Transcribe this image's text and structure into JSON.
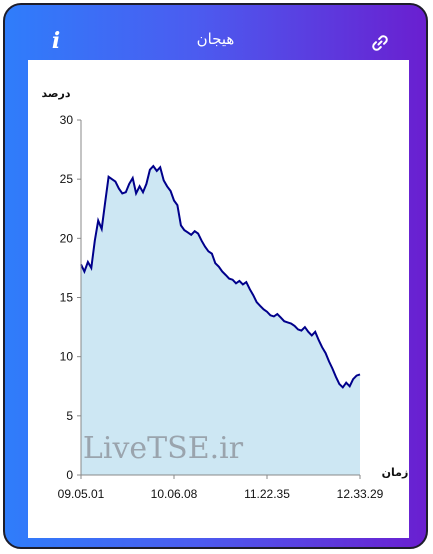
{
  "header": {
    "info_icon": "info-icon",
    "info_label": "i",
    "title": "هیجان",
    "link_icon": "link-icon"
  },
  "watermark": "LiveTSE.ir",
  "colors": {
    "gradient_start": "#2f7dfb",
    "gradient_end": "#6a1fd0",
    "line": "#00008b",
    "area": "#cde7f3"
  },
  "chart_data": {
    "type": "area",
    "ylabel": "درصد",
    "xlabel": "زمان",
    "ylim": [
      0,
      30
    ],
    "yticks": [
      "0",
      "5",
      "10",
      "15",
      "20",
      "25",
      "30"
    ],
    "xticks": [
      "09.05.01",
      "10.06.08",
      "11.22.35",
      "12.33.29"
    ],
    "grid": false,
    "legend": "none",
    "series": [
      {
        "values": [
          17.8,
          17.2,
          18.0,
          17.5,
          19.8,
          21.5,
          20.8,
          23.0,
          25.2,
          25.0,
          24.8,
          24.2,
          23.8,
          23.9,
          24.6,
          25.1,
          23.8,
          24.4,
          23.9,
          24.6,
          25.8,
          26.1,
          25.7,
          26.0,
          24.9,
          24.4,
          24.0,
          23.2,
          22.8,
          21.1,
          20.7,
          20.5,
          20.3,
          20.6,
          20.4,
          19.8,
          19.3,
          18.9,
          18.7,
          17.9,
          17.6,
          17.2,
          16.9,
          16.6,
          16.5,
          16.2,
          16.4,
          16.1,
          16.3,
          15.7,
          15.2,
          14.6,
          14.3,
          14.0,
          13.8,
          13.5,
          13.4,
          13.6,
          13.3,
          13.0,
          12.9,
          12.8,
          12.6,
          12.3,
          12.2,
          12.5,
          12.1,
          11.8,
          12.1,
          11.4,
          10.8,
          10.3,
          9.6,
          9.0,
          8.3,
          7.7,
          7.4,
          7.8,
          7.5,
          8.1,
          8.4,
          8.5
        ]
      }
    ]
  }
}
